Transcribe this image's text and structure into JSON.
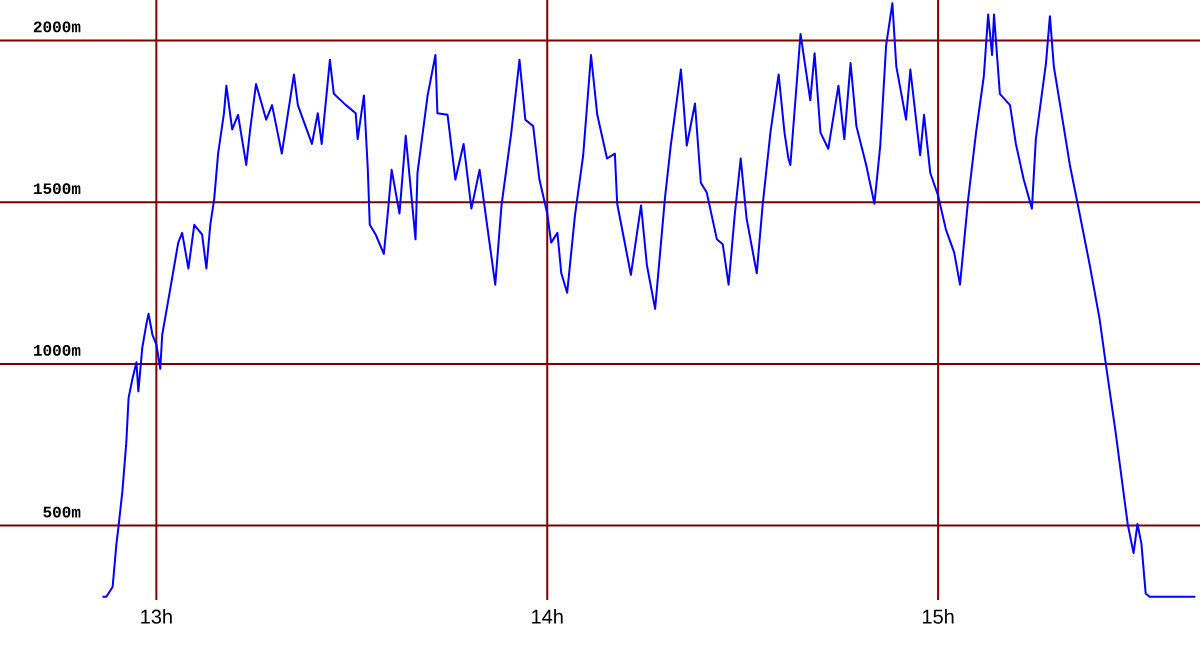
{
  "chart_data": {
    "type": "line",
    "xlim": [
      12.6,
      15.67
    ],
    "ylim": [
      270,
      2125
    ],
    "xticks": [
      {
        "value": 13,
        "label": "13h"
      },
      {
        "value": 14,
        "label": "14h"
      },
      {
        "value": 15,
        "label": "15h"
      }
    ],
    "yticks": [
      {
        "value": 500,
        "label": "500m"
      },
      {
        "value": 1000,
        "label": "1000m"
      },
      {
        "value": 1500,
        "label": "1500m"
      },
      {
        "value": 2000,
        "label": "2000m"
      }
    ],
    "grid": true,
    "marker": "none",
    "line_style": "solid",
    "series": [
      {
        "color": "#0000ff",
        "x": [
          12.862,
          12.872,
          12.888,
          12.898,
          12.903,
          12.913,
          12.923,
          12.929,
          12.939,
          12.949,
          12.954,
          12.964,
          12.974,
          12.98,
          12.99,
          13.0,
          13.01,
          13.015,
          13.031,
          13.046,
          13.056,
          13.066,
          13.082,
          13.097,
          13.117,
          13.128,
          13.138,
          13.148,
          13.158,
          13.173,
          13.179,
          13.194,
          13.209,
          13.23,
          13.24,
          13.255,
          13.281,
          13.296,
          13.321,
          13.352,
          13.362,
          13.398,
          13.413,
          13.423,
          13.444,
          13.454,
          13.485,
          13.51,
          13.515,
          13.531,
          13.541,
          13.546,
          13.561,
          13.582,
          13.592,
          13.602,
          13.622,
          13.638,
          13.663,
          13.668,
          13.694,
          13.714,
          13.719,
          13.745,
          13.765,
          13.786,
          13.806,
          13.827,
          13.842,
          13.867,
          13.883,
          13.908,
          13.929,
          13.944,
          13.964,
          13.98,
          14.0,
          14.01,
          14.026,
          14.036,
          14.051,
          14.071,
          14.092,
          14.112,
          14.128,
          14.153,
          14.173,
          14.179,
          14.199,
          14.214,
          14.24,
          14.255,
          14.276,
          14.301,
          14.316,
          14.342,
          14.357,
          14.378,
          14.393,
          14.408,
          14.434,
          14.449,
          14.464,
          14.48,
          14.495,
          14.51,
          14.536,
          14.551,
          14.571,
          14.592,
          14.607,
          14.617,
          14.622,
          14.648,
          14.673,
          14.684,
          14.699,
          14.719,
          14.745,
          14.76,
          14.776,
          14.791,
          14.816,
          14.837,
          14.852,
          14.867,
          14.883,
          14.893,
          14.918,
          14.929,
          14.954,
          14.964,
          14.98,
          15.0,
          15.02,
          15.041,
          15.056,
          15.077,
          15.097,
          15.117,
          15.128,
          15.138,
          15.143,
          15.158,
          15.184,
          15.199,
          15.219,
          15.24,
          15.25,
          15.276,
          15.286,
          15.296,
          15.321,
          15.337,
          15.357,
          15.388,
          15.413,
          15.429,
          15.454,
          15.474,
          15.485,
          15.5,
          15.51,
          15.52,
          15.531,
          15.541,
          15.658
        ],
        "values": [
          280,
          280,
          310,
          445,
          495,
          605,
          755,
          895,
          955,
          1005,
          915,
          1050,
          1120,
          1155,
          1090,
          1060,
          985,
          1090,
          1200,
          1305,
          1375,
          1405,
          1295,
          1430,
          1400,
          1295,
          1430,
          1510,
          1650,
          1775,
          1860,
          1725,
          1770,
          1615,
          1725,
          1865,
          1755,
          1800,
          1650,
          1895,
          1800,
          1680,
          1775,
          1680,
          1940,
          1835,
          1800,
          1775,
          1695,
          1830,
          1600,
          1430,
          1400,
          1340,
          1465,
          1600,
          1465,
          1705,
          1385,
          1590,
          1830,
          1955,
          1775,
          1770,
          1570,
          1680,
          1480,
          1600,
          1465,
          1245,
          1490,
          1715,
          1940,
          1755,
          1735,
          1570,
          1465,
          1375,
          1405,
          1280,
          1220,
          1460,
          1645,
          1955,
          1770,
          1635,
          1650,
          1495,
          1370,
          1275,
          1490,
          1305,
          1170,
          1510,
          1675,
          1910,
          1675,
          1805,
          1560,
          1530,
          1385,
          1370,
          1245,
          1465,
          1635,
          1450,
          1280,
          1490,
          1715,
          1895,
          1715,
          1635,
          1615,
          2020,
          1815,
          1960,
          1715,
          1665,
          1860,
          1695,
          1930,
          1735,
          1615,
          1495,
          1675,
          1985,
          2115,
          1920,
          1755,
          1910,
          1645,
          1770,
          1590,
          1520,
          1415,
          1345,
          1245,
          1510,
          1715,
          1890,
          2080,
          1955,
          2080,
          1835,
          1800,
          1680,
          1570,
          1480,
          1695,
          1930,
          2075,
          1920,
          1735,
          1615,
          1495,
          1305,
          1140,
          1000,
          790,
          605,
          505,
          415,
          505,
          445,
          290,
          280,
          280
        ]
      }
    ]
  }
}
